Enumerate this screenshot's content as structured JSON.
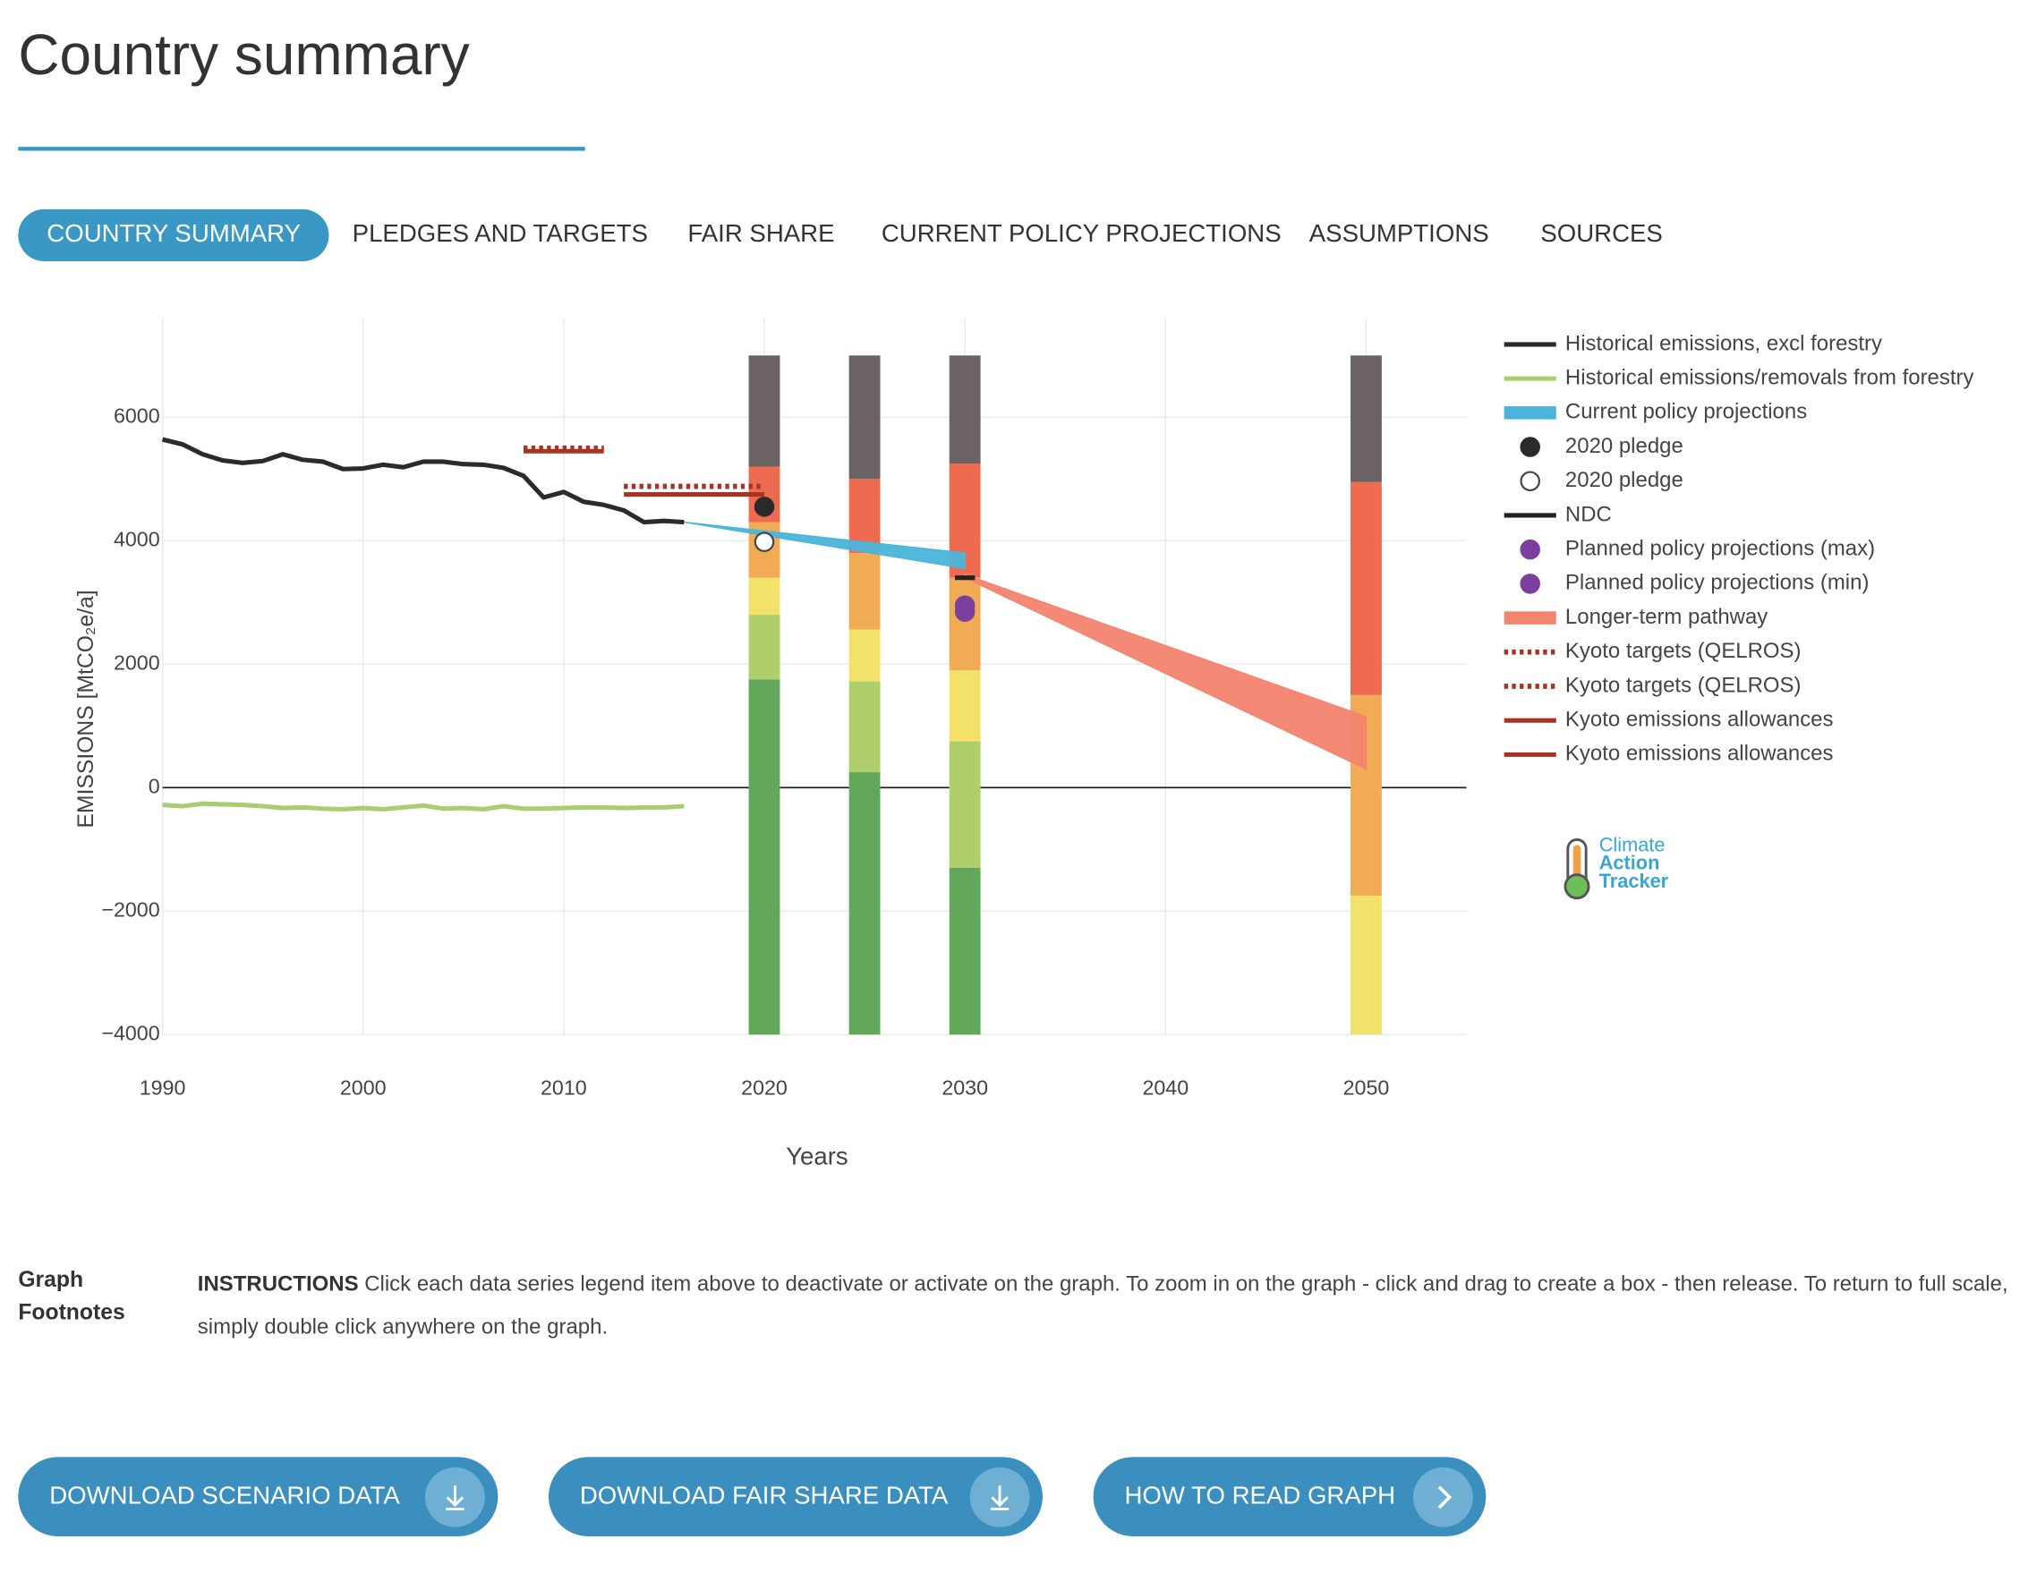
{
  "header": {
    "title": "Country summary"
  },
  "tabs": [
    "COUNTRY SUMMARY",
    "PLEDGES AND TARGETS",
    "FAIR SHARE",
    "CURRENT POLICY PROJECTIONS",
    "ASSUMPTIONS",
    "SOURCES"
  ],
  "chart_data": {
    "type": "combo",
    "x_label": "Years",
    "y_label": "EMISSIONS [MtCO₂e/a]",
    "xlim": [
      1990,
      2055
    ],
    "ylim": [
      -4000,
      7600
    ],
    "xticks": [
      1990,
      2000,
      2010,
      2020,
      2030,
      2040,
      2050
    ],
    "yticks": [
      {
        "value": -4000,
        "label": "−4000"
      },
      {
        "value": -2000,
        "label": "−2000"
      },
      0,
      2000,
      4000,
      6000
    ],
    "grid": true,
    "bars": {
      "x": [
        2020,
        2025,
        2030,
        2050
      ],
      "stacks": [
        {
          "color": "#63a85a",
          "values": [
            5750,
            4250,
            2700,
            0
          ]
        },
        {
          "color": "#aecf6c",
          "values": [
            1050,
            1470,
            2050,
            0
          ]
        },
        {
          "color": "#f2e26a",
          "values": [
            600,
            840,
            1150,
            2250
          ]
        },
        {
          "color": "#f2ab55",
          "values": [
            900,
            1240,
            1500,
            3250
          ]
        },
        {
          "color": "#ef6b4f",
          "values": [
            900,
            1200,
            1850,
            3450
          ]
        },
        {
          "color": "#6b6363",
          "values": [
            1800,
            2000,
            1750,
            2050
          ]
        }
      ]
    },
    "series": [
      {
        "name": "Historical emissions, excl forestry",
        "kind": "line",
        "color": "#2b2b2b",
        "x": [
          1990,
          1991,
          1992,
          1993,
          1994,
          1995,
          1996,
          1997,
          1998,
          1999,
          2000,
          2001,
          2002,
          2003,
          2004,
          2005,
          2006,
          2007,
          2008,
          2009,
          2010,
          2011,
          2012,
          2013,
          2014,
          2015,
          2016
        ],
        "values": [
          5640,
          5560,
          5400,
          5300,
          5260,
          5290,
          5400,
          5310,
          5280,
          5160,
          5170,
          5230,
          5190,
          5280,
          5280,
          5240,
          5230,
          5180,
          5050,
          4700,
          4790,
          4630,
          4580,
          4490,
          4300,
          4320,
          4300
        ]
      },
      {
        "name": "Historical emissions/removals from forestry",
        "kind": "line",
        "color": "#a8cf6f",
        "x": [
          1990,
          1991,
          1992,
          1993,
          1994,
          1995,
          1996,
          1997,
          1998,
          1999,
          2000,
          2001,
          2002,
          2003,
          2004,
          2005,
          2006,
          2007,
          2008,
          2009,
          2010,
          2011,
          2012,
          2013,
          2014,
          2015,
          2016
        ],
        "values": [
          -280,
          -300,
          -260,
          -270,
          -280,
          -300,
          -330,
          -320,
          -340,
          -350,
          -330,
          -350,
          -320,
          -290,
          -340,
          -330,
          -350,
          -300,
          -340,
          -340,
          -330,
          -320,
          -320,
          -330,
          -320,
          -320,
          -300
        ]
      },
      {
        "name": "Current policy projections",
        "kind": "area",
        "color": "#4ab5d9",
        "x": [
          2016,
          2030
        ],
        "values": [
          4300,
          3800
        ],
        "lower": [
          4300,
          3550
        ]
      },
      {
        "name": "2020 pledge",
        "kind": "marker",
        "marker": "filled",
        "color": "#2b2b2b",
        "x": [
          2020
        ],
        "values": [
          4550
        ]
      },
      {
        "name": "2020 pledge",
        "kind": "marker",
        "marker": "open",
        "color": "#2b2b2b",
        "x": [
          2020
        ],
        "values": [
          3980
        ]
      },
      {
        "name": "NDC",
        "kind": "line",
        "color": "#222222",
        "x": [
          2029.5,
          2030.5
        ],
        "values": [
          3400,
          3400
        ]
      },
      {
        "name": "Planned policy projections (max)",
        "kind": "marker",
        "marker": "filled",
        "color": "#7b3f9e",
        "x": [
          2030
        ],
        "values": [
          2950
        ]
      },
      {
        "name": "Planned policy projections (min)",
        "kind": "marker",
        "marker": "filled",
        "color": "#7b3f9e",
        "x": [
          2030
        ],
        "values": [
          2850
        ]
      },
      {
        "name": "Longer-term pathway",
        "kind": "area",
        "color": "#f3846e",
        "x": [
          2030,
          2050
        ],
        "values": [
          3450,
          1150
        ],
        "lower": [
          3400,
          300
        ]
      },
      {
        "name": "Kyoto targets (QELROS)",
        "kind": "line",
        "dash": true,
        "color": "#a83224",
        "x": [
          2008,
          2012
        ],
        "values": [
          5500,
          5500
        ]
      },
      {
        "name": "Kyoto targets (QELROS)",
        "kind": "line",
        "dash": true,
        "color": "#a83224",
        "x": [
          2013,
          2020
        ],
        "values": [
          4880,
          4880
        ]
      },
      {
        "name": "Kyoto emissions allowances",
        "kind": "line",
        "color": "#a83224",
        "x": [
          2008,
          2012
        ],
        "values": [
          5450,
          5450
        ]
      },
      {
        "name": "Kyoto emissions allowances",
        "kind": "line",
        "color": "#a83224",
        "x": [
          2013,
          2020
        ],
        "values": [
          4750,
          4750
        ]
      }
    ],
    "logo": [
      "Climate",
      "Action",
      "Tracker"
    ]
  },
  "footnotes": {
    "heading": "Graph Footnotes",
    "label": "INSTRUCTIONS",
    "text": "Click each data series legend item above to deactivate or activate on the graph. To zoom in on the graph - click and drag to create a box - then release. To return to full scale, simply double click anywhere on the graph."
  },
  "buttons": [
    "DOWNLOAD SCENARIO DATA",
    "DOWNLOAD FAIR SHARE DATA",
    "HOW TO READ GRAPH"
  ]
}
